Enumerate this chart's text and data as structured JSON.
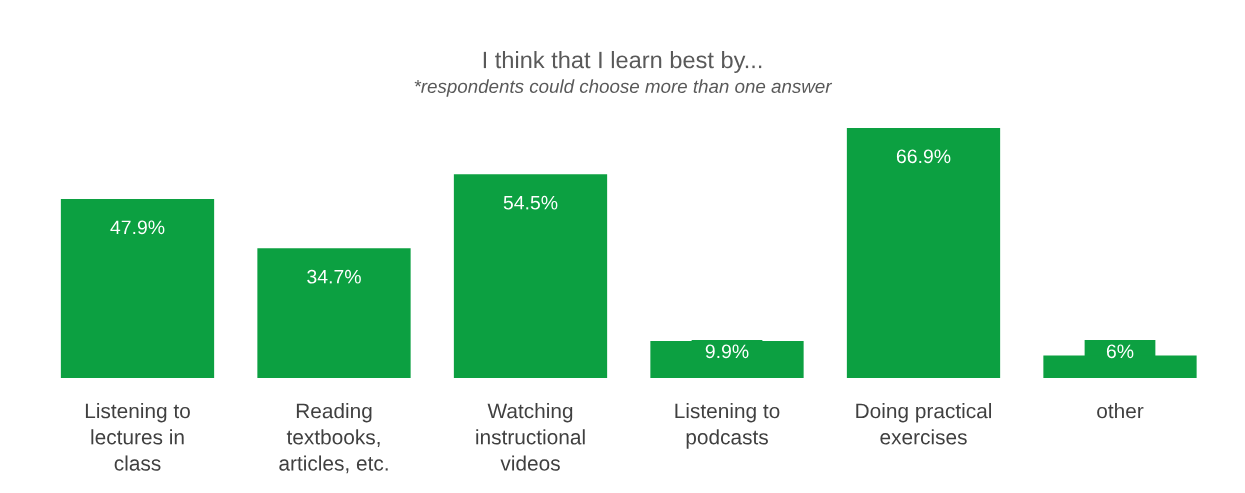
{
  "chart_data": {
    "type": "bar",
    "title": "I think that I learn best by...",
    "subtitle": "*respondents could choose more than one answer",
    "categories": [
      "Listening to\nlectures in\nclass",
      "Reading\ntextbooks,\narticles, etc.",
      "Watching\ninstructional\nvideos",
      "Listening to\npodcasts",
      "Doing practical\nexercises",
      "other"
    ],
    "series": [
      {
        "color": "#0ca041",
        "values": [
          47.9,
          34.7,
          54.5,
          9.9,
          66.9,
          6
        ],
        "value_labels": [
          "47.9%",
          "34.7%",
          "54.5%",
          "9.9%",
          "66.9%",
          "6%"
        ]
      }
    ],
    "grid": false,
    "legend": false
  }
}
